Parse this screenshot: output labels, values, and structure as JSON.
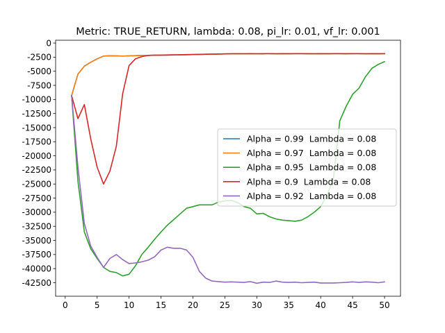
{
  "chart_data": {
    "type": "line",
    "title": "Metric: TRUE_RETURN, lambda: 0.08, pi_lr: 0.01, vf_lr: 0.001",
    "xlabel": "",
    "ylabel": "",
    "xlim": [
      -1.5,
      52.5
    ],
    "ylim": [
      -44900,
      500
    ],
    "xticks": [
      0,
      5,
      10,
      15,
      20,
      25,
      30,
      35,
      40,
      45,
      50
    ],
    "yticks": [
      0,
      -2500,
      -5000,
      -7500,
      -10000,
      -12500,
      -15000,
      -17500,
      -20000,
      -22500,
      -25000,
      -27500,
      -30000,
      -32500,
      -35000,
      -37500,
      -40000,
      -42500
    ],
    "grid": false,
    "legend_position": "center-right",
    "x": [
      1,
      2,
      3,
      4,
      5,
      6,
      7,
      8,
      9,
      10,
      11,
      12,
      13,
      14,
      15,
      16,
      17,
      18,
      19,
      20,
      21,
      22,
      23,
      24,
      25,
      26,
      27,
      28,
      29,
      30,
      31,
      32,
      33,
      34,
      35,
      36,
      37,
      38,
      39,
      40,
      41,
      42,
      43,
      44,
      45,
      46,
      47,
      48,
      49,
      50
    ],
    "series": [
      {
        "name": "Alpha = 0.99  Lambda = 0.08",
        "color": "#1f77b4",
        "values": [
          -9300,
          -5500,
          -4100,
          -3400,
          -2800,
          -2300,
          -2250,
          -2280,
          -2300,
          -2270,
          -2230,
          -2200,
          -2180,
          -2160,
          -2150,
          -2130,
          -2110,
          -2090,
          -2070,
          -2050,
          -2020,
          -1990,
          -1970,
          -1950,
          -1920,
          -1900,
          -1890,
          -1900,
          -1880,
          -1900,
          -1890,
          -1870,
          -1900,
          -1880,
          -1890,
          -1870,
          -1880,
          -1890,
          -1900,
          -1880,
          -1890,
          -1870,
          -1880,
          -1890,
          -1870,
          -1880,
          -1900,
          -1880,
          -1890,
          -1880
        ]
      },
      {
        "name": "Alpha = 0.97  Lambda = 0.08",
        "color": "#ff7f0e",
        "values": [
          -9300,
          -5500,
          -4100,
          -3400,
          -2800,
          -2300,
          -2250,
          -2280,
          -2300,
          -2270,
          -2230,
          -2200,
          -2180,
          -2160,
          -2150,
          -2130,
          -2110,
          -2090,
          -2070,
          -2050,
          -2020,
          -1990,
          -1970,
          -1950,
          -1920,
          -1900,
          -1890,
          -1900,
          -1880,
          -1900,
          -1890,
          -1870,
          -1900,
          -1880,
          -1890,
          -1870,
          -1880,
          -1890,
          -1900,
          -1880,
          -1890,
          -1870,
          -1880,
          -1890,
          -1870,
          -1880,
          -1900,
          -1880,
          -1890,
          -1880
        ]
      },
      {
        "name": "Alpha = 0.95  Lambda = 0.08",
        "color": "#2ca02c",
        "values": [
          -9300,
          -24500,
          -33500,
          -36500,
          -38200,
          -39800,
          -40500,
          -40700,
          -41300,
          -41000,
          -39500,
          -37500,
          -36200,
          -34800,
          -33500,
          -32300,
          -31300,
          -30300,
          -29300,
          -29000,
          -28700,
          -28700,
          -28700,
          -28200,
          -28000,
          -27900,
          -28300,
          -29000,
          -29300,
          -30300,
          -30200,
          -30800,
          -31200,
          -31400,
          -31500,
          -31600,
          -31400,
          -30800,
          -30000,
          -29000,
          -27000,
          -24000,
          -13800,
          -11200,
          -9100,
          -8000,
          -6000,
          -4500,
          -3800,
          -3300
        ]
      },
      {
        "name": "Alpha = 0.9  Lambda = 0.08",
        "color": "#d62728",
        "values": [
          -9300,
          -13400,
          -10900,
          -17000,
          -22000,
          -25000,
          -22700,
          -18300,
          -9000,
          -4000,
          -2800,
          -2400,
          -2200,
          -2150,
          -2130,
          -2110,
          -2090,
          -2070,
          -2050,
          -2020,
          -2000,
          -1980,
          -1960,
          -1940,
          -1920,
          -1900,
          -1890,
          -1900,
          -1880,
          -1900,
          -1890,
          -1870,
          -1900,
          -1880,
          -1890,
          -1870,
          -1880,
          -1890,
          -1900,
          -1880,
          -1890,
          -1870,
          -1880,
          -1890,
          -1870,
          -1880,
          -1900,
          -1880,
          -1890,
          -1880
        ]
      },
      {
        "name": "Alpha = 0.92  Lambda = 0.08",
        "color": "#9467bd",
        "values": [
          -9300,
          -22000,
          -32000,
          -36000,
          -38000,
          -39800,
          -38200,
          -37500,
          -38400,
          -39100,
          -39000,
          -38800,
          -38500,
          -37900,
          -36700,
          -36200,
          -36400,
          -36400,
          -36700,
          -38000,
          -40500,
          -41700,
          -42200,
          -42300,
          -42400,
          -42350,
          -42400,
          -42450,
          -42300,
          -42600,
          -42400,
          -42450,
          -42200,
          -42400,
          -42450,
          -42400,
          -42500,
          -42450,
          -42400,
          -42550,
          -42550,
          -42550,
          -42500,
          -42450,
          -42350,
          -42450,
          -42350,
          -42400,
          -42500,
          -42350
        ]
      }
    ]
  }
}
